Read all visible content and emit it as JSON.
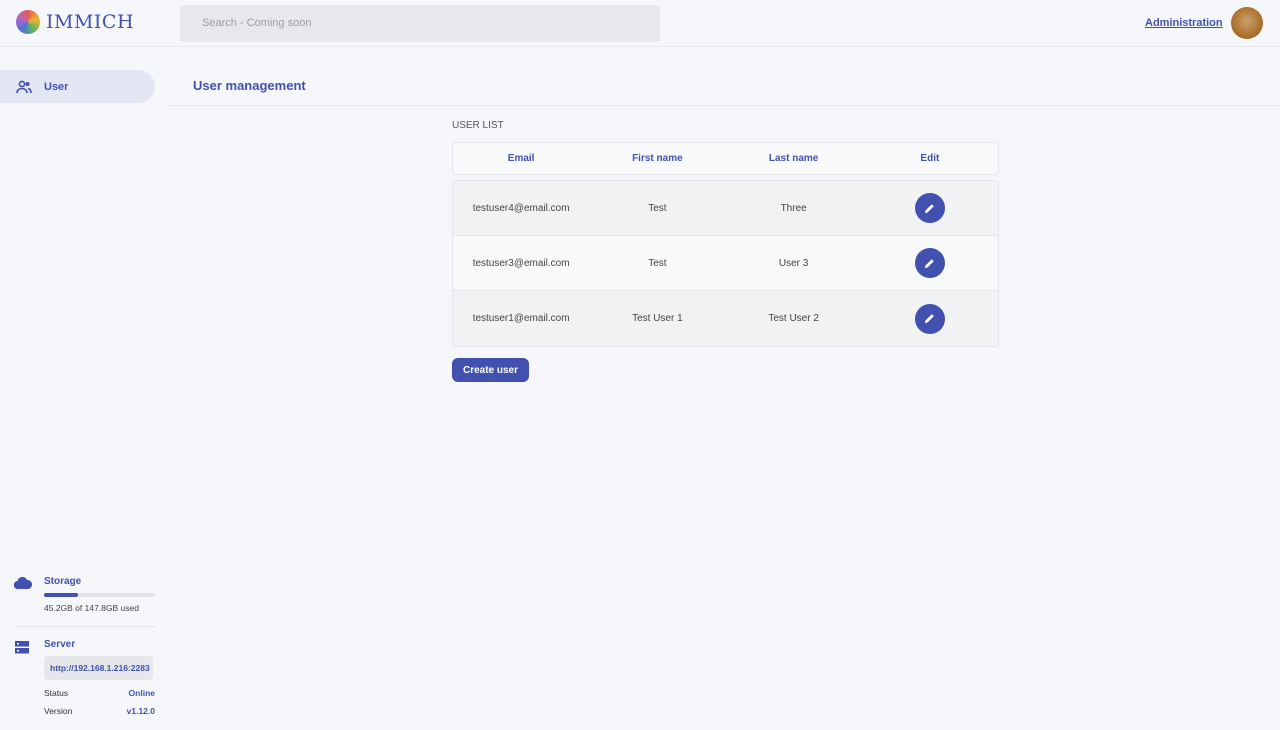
{
  "header": {
    "logo_text": "IMMICH",
    "search_placeholder": "Search - Coming soon",
    "admin_link": "Administration"
  },
  "sidebar": {
    "items": [
      {
        "label": "User",
        "icon": "users-icon"
      }
    ],
    "storage": {
      "label": "Storage",
      "used": "45.2GB",
      "total": "147.8GB",
      "text": "45.2GB of 147.8GB used",
      "percent": 30.6
    },
    "server": {
      "label": "Server",
      "url": "http://192.168.1.216:2283",
      "status_label": "Status",
      "status": "Online",
      "version_label": "Version",
      "version": "v1.12.0"
    }
  },
  "main": {
    "title": "User management",
    "section": "USER LIST",
    "columns": [
      "Email",
      "First name",
      "Last name",
      "Edit"
    ],
    "rows": [
      {
        "email": "testuser4@email.com",
        "first": "Test",
        "last": "Three"
      },
      {
        "email": "testuser3@email.com",
        "first": "Test",
        "last": "User 3"
      },
      {
        "email": "testuser1@email.com",
        "first": "Test User 1",
        "last": "Test User 2"
      }
    ],
    "create_label": "Create user"
  },
  "colors": {
    "accent": "#4250af"
  }
}
